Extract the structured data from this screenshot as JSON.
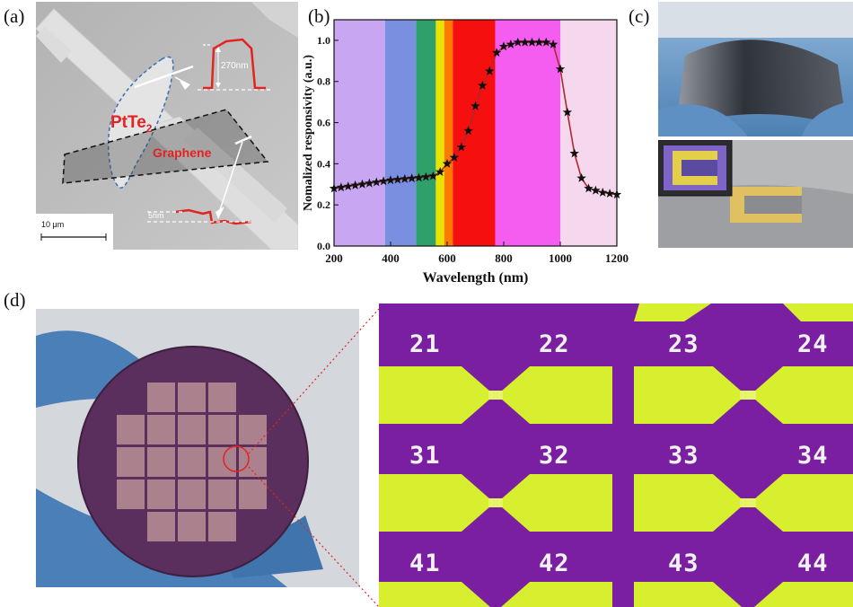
{
  "panel_labels": {
    "a": "(a)",
    "b": "(b)",
    "c": "(c)",
    "d": "(d)"
  },
  "panel_a": {
    "material_label_main": "PtTe",
    "material_label_sub": "2",
    "graphene_label": "Graphene",
    "thickness_label_1": "270nm",
    "thickness_label_2": "5nm",
    "scale_bar_label": "10 μm"
  },
  "chart_data": {
    "type": "line",
    "xlabel": "Wavelength (nm)",
    "ylabel": "Nomalized responsivity (a.u.)",
    "xlim": [
      200,
      1200
    ],
    "ylim": [
      0.0,
      1.1
    ],
    "xticks": [
      "200",
      "400",
      "600",
      "800",
      "1000",
      "1200"
    ],
    "yticks": [
      "0.0",
      "0.2",
      "0.4",
      "0.6",
      "0.8",
      "1.0"
    ],
    "marker": "star",
    "line_color": "#b0282a",
    "marker_color": "#111111",
    "spectrum_bands": [
      {
        "from": 200,
        "to": 380,
        "color": "#c9a6f2"
      },
      {
        "from": 380,
        "to": 490,
        "color": "#7b8fe0"
      },
      {
        "from": 490,
        "to": 560,
        "color": "#2fa06a"
      },
      {
        "from": 560,
        "to": 590,
        "color": "#e8e300"
      },
      {
        "from": 590,
        "to": 620,
        "color": "#ff7a00"
      },
      {
        "from": 620,
        "to": 770,
        "color": "#f50f0f"
      },
      {
        "from": 770,
        "to": 1000,
        "color": "#f45df0"
      },
      {
        "from": 1000,
        "to": 1200,
        "color": "#f6d8ee"
      }
    ],
    "series": [
      {
        "x": [
          200,
          225,
          250,
          275,
          300,
          325,
          350,
          375,
          400,
          425,
          450,
          475,
          500,
          525,
          550,
          575,
          600,
          625,
          650,
          675,
          700,
          725,
          750,
          775,
          800,
          825,
          850,
          875,
          900,
          925,
          950,
          975,
          1000,
          1025,
          1050,
          1075,
          1100,
          1125,
          1150,
          1175,
          1200
        ],
        "y": [
          0.28,
          0.285,
          0.29,
          0.295,
          0.3,
          0.305,
          0.31,
          0.315,
          0.32,
          0.323,
          0.326,
          0.329,
          0.332,
          0.336,
          0.34,
          0.36,
          0.4,
          0.43,
          0.48,
          0.56,
          0.68,
          0.78,
          0.85,
          0.94,
          0.97,
          0.98,
          0.99,
          0.99,
          0.99,
          0.99,
          0.99,
          0.98,
          0.86,
          0.65,
          0.45,
          0.33,
          0.28,
          0.27,
          0.26,
          0.255,
          0.25
        ]
      }
    ]
  },
  "panel_d": {
    "pad_numbers": [
      "21",
      "22",
      "23",
      "24",
      "31",
      "32",
      "33",
      "34",
      "41",
      "42",
      "43",
      "44"
    ]
  },
  "colors": {
    "pad_purple": "#7a1fa2",
    "pad_yellow": "#d7ef2e",
    "annotation_red": "#e32222",
    "wafer": "#6a3a68",
    "glove": "#4a7fb8"
  }
}
